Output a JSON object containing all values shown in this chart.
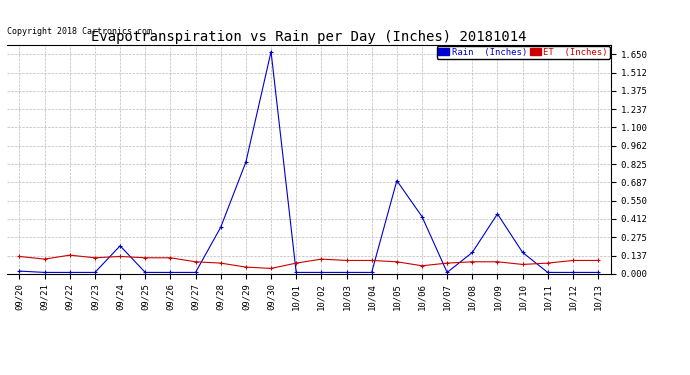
{
  "title": "Evapotranspiration vs Rain per Day (Inches) 20181014",
  "copyright": "Copyright 2018 Cartronics.com",
  "x_labels": [
    "09/20",
    "09/21",
    "09/22",
    "09/23",
    "09/24",
    "09/25",
    "09/26",
    "09/27",
    "09/28",
    "09/29",
    "09/30",
    "10/01",
    "10/02",
    "10/03",
    "10/04",
    "10/05",
    "10/06",
    "10/07",
    "10/08",
    "10/09",
    "10/10",
    "10/11",
    "10/12",
    "10/13"
  ],
  "rain_inches": [
    0.02,
    0.01,
    0.01,
    0.01,
    0.21,
    0.01,
    0.01,
    0.01,
    0.35,
    0.84,
    1.67,
    0.01,
    0.01,
    0.01,
    0.01,
    0.7,
    0.43,
    0.01,
    0.16,
    0.45,
    0.16,
    0.01,
    0.01,
    0.01
  ],
  "et_inches": [
    0.13,
    0.11,
    0.14,
    0.12,
    0.13,
    0.12,
    0.12,
    0.09,
    0.08,
    0.05,
    0.04,
    0.08,
    0.11,
    0.1,
    0.1,
    0.09,
    0.06,
    0.08,
    0.09,
    0.09,
    0.07,
    0.08,
    0.1,
    0.1
  ],
  "rain_color": "#0000cc",
  "et_color": "#cc0000",
  "background_color": "#ffffff",
  "grid_color": "#bbbbbb",
  "title_fontsize": 10,
  "copyright_fontsize": 6,
  "tick_fontsize": 6.5,
  "legend_rain_label": "Rain  (Inches)",
  "legend_et_label": "ET  (Inches)",
  "y_ticks": [
    0.0,
    0.137,
    0.275,
    0.412,
    0.55,
    0.687,
    0.825,
    0.962,
    1.1,
    1.237,
    1.375,
    1.512,
    1.65
  ],
  "ylim": [
    0.0,
    1.72
  ]
}
